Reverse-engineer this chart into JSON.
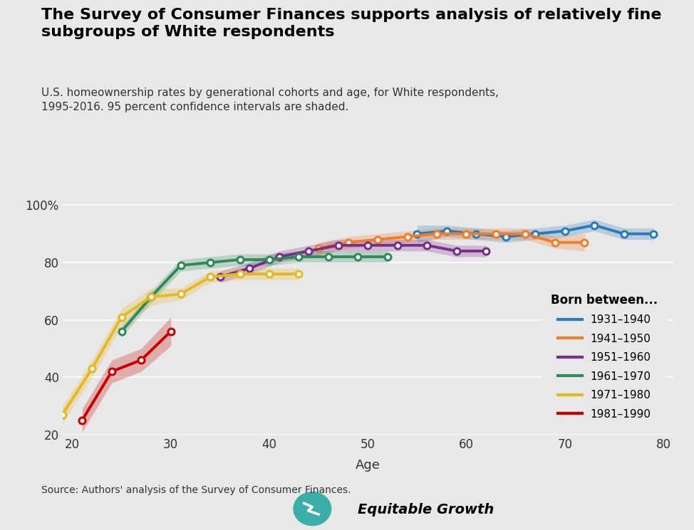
{
  "title": "The Survey of Consumer Finances supports analysis of relatively fine\nsubgroups of White respondents",
  "subtitle": "U.S. homeownership rates by generational cohorts and age, for White respondents,\n1995-2016. 95 percent confidence intervals are shaded.",
  "xlabel": "Age",
  "source": "Source: Authors' analysis of the Survey of Consumer Finances.",
  "bg_color": "#e8e8e8",
  "plot_bg_color": "#e8e8e8",
  "ylim": [
    20,
    105
  ],
  "xlim": [
    19,
    81
  ],
  "yticks": [
    20,
    40,
    60,
    80,
    100
  ],
  "ytick_labels": [
    "20",
    "40",
    "60",
    "80",
    "100%"
  ],
  "xticks": [
    20,
    30,
    40,
    50,
    60,
    70,
    80
  ],
  "legend_title": "Born between...",
  "series": [
    {
      "label": "1931–1940",
      "color": "#2B7BB9",
      "ages": [
        55,
        58,
        61,
        64,
        67,
        70,
        73,
        76,
        79
      ],
      "values": [
        90,
        91,
        90,
        89,
        90,
        91,
        93,
        90,
        90
      ],
      "ci_low": [
        87,
        89,
        88,
        87,
        88,
        89,
        91,
        88,
        88
      ],
      "ci_high": [
        93,
        93,
        92,
        91,
        92,
        93,
        95,
        92,
        92
      ]
    },
    {
      "label": "1941–1950",
      "color": "#F07D2A",
      "ages": [
        45,
        48,
        51,
        54,
        57,
        60,
        63,
        66,
        69,
        72
      ],
      "values": [
        85,
        87,
        88,
        89,
        90,
        90,
        90,
        90,
        87,
        87
      ],
      "ci_low": [
        83,
        85,
        86,
        87,
        88,
        88,
        88,
        88,
        85,
        84
      ],
      "ci_high": [
        87,
        89,
        90,
        91,
        92,
        92,
        92,
        92,
        89,
        90
      ]
    },
    {
      "label": "1951–1960",
      "color": "#7B2D8B",
      "ages": [
        35,
        38,
        41,
        44,
        47,
        50,
        53,
        56,
        59,
        62
      ],
      "values": [
        75,
        78,
        82,
        84,
        86,
        86,
        86,
        86,
        84,
        84
      ],
      "ci_low": [
        73,
        76,
        80,
        82,
        84,
        84,
        84,
        84,
        82,
        82
      ],
      "ci_high": [
        77,
        80,
        84,
        86,
        88,
        88,
        88,
        88,
        86,
        86
      ]
    },
    {
      "label": "1961–1970",
      "color": "#2E8B57",
      "ages": [
        25,
        28,
        31,
        34,
        37,
        40,
        43,
        46,
        49,
        52
      ],
      "values": [
        56,
        68,
        79,
        80,
        81,
        81,
        82,
        82,
        82,
        82
      ],
      "ci_low": [
        54,
        66,
        77,
        78,
        79,
        79,
        80,
        80,
        80,
        80
      ],
      "ci_high": [
        58,
        70,
        81,
        82,
        83,
        83,
        84,
        84,
        84,
        84
      ]
    },
    {
      "label": "1971–1980",
      "color": "#E6B820",
      "ages": [
        19,
        22,
        25,
        28,
        31,
        34,
        37,
        40,
        43
      ],
      "values": [
        27,
        43,
        61,
        68,
        69,
        75,
        76,
        76,
        76
      ],
      "ci_low": [
        24,
        40,
        58,
        65,
        67,
        73,
        74,
        74,
        74
      ],
      "ci_high": [
        30,
        46,
        64,
        71,
        71,
        77,
        78,
        78,
        78
      ]
    },
    {
      "label": "1981–1990",
      "color": "#CC0000",
      "ages": [
        21,
        24,
        27,
        30
      ],
      "values": [
        25,
        42,
        46,
        56
      ],
      "ci_low": [
        21,
        38,
        42,
        51
      ],
      "ci_high": [
        29,
        46,
        50,
        61
      ]
    }
  ]
}
